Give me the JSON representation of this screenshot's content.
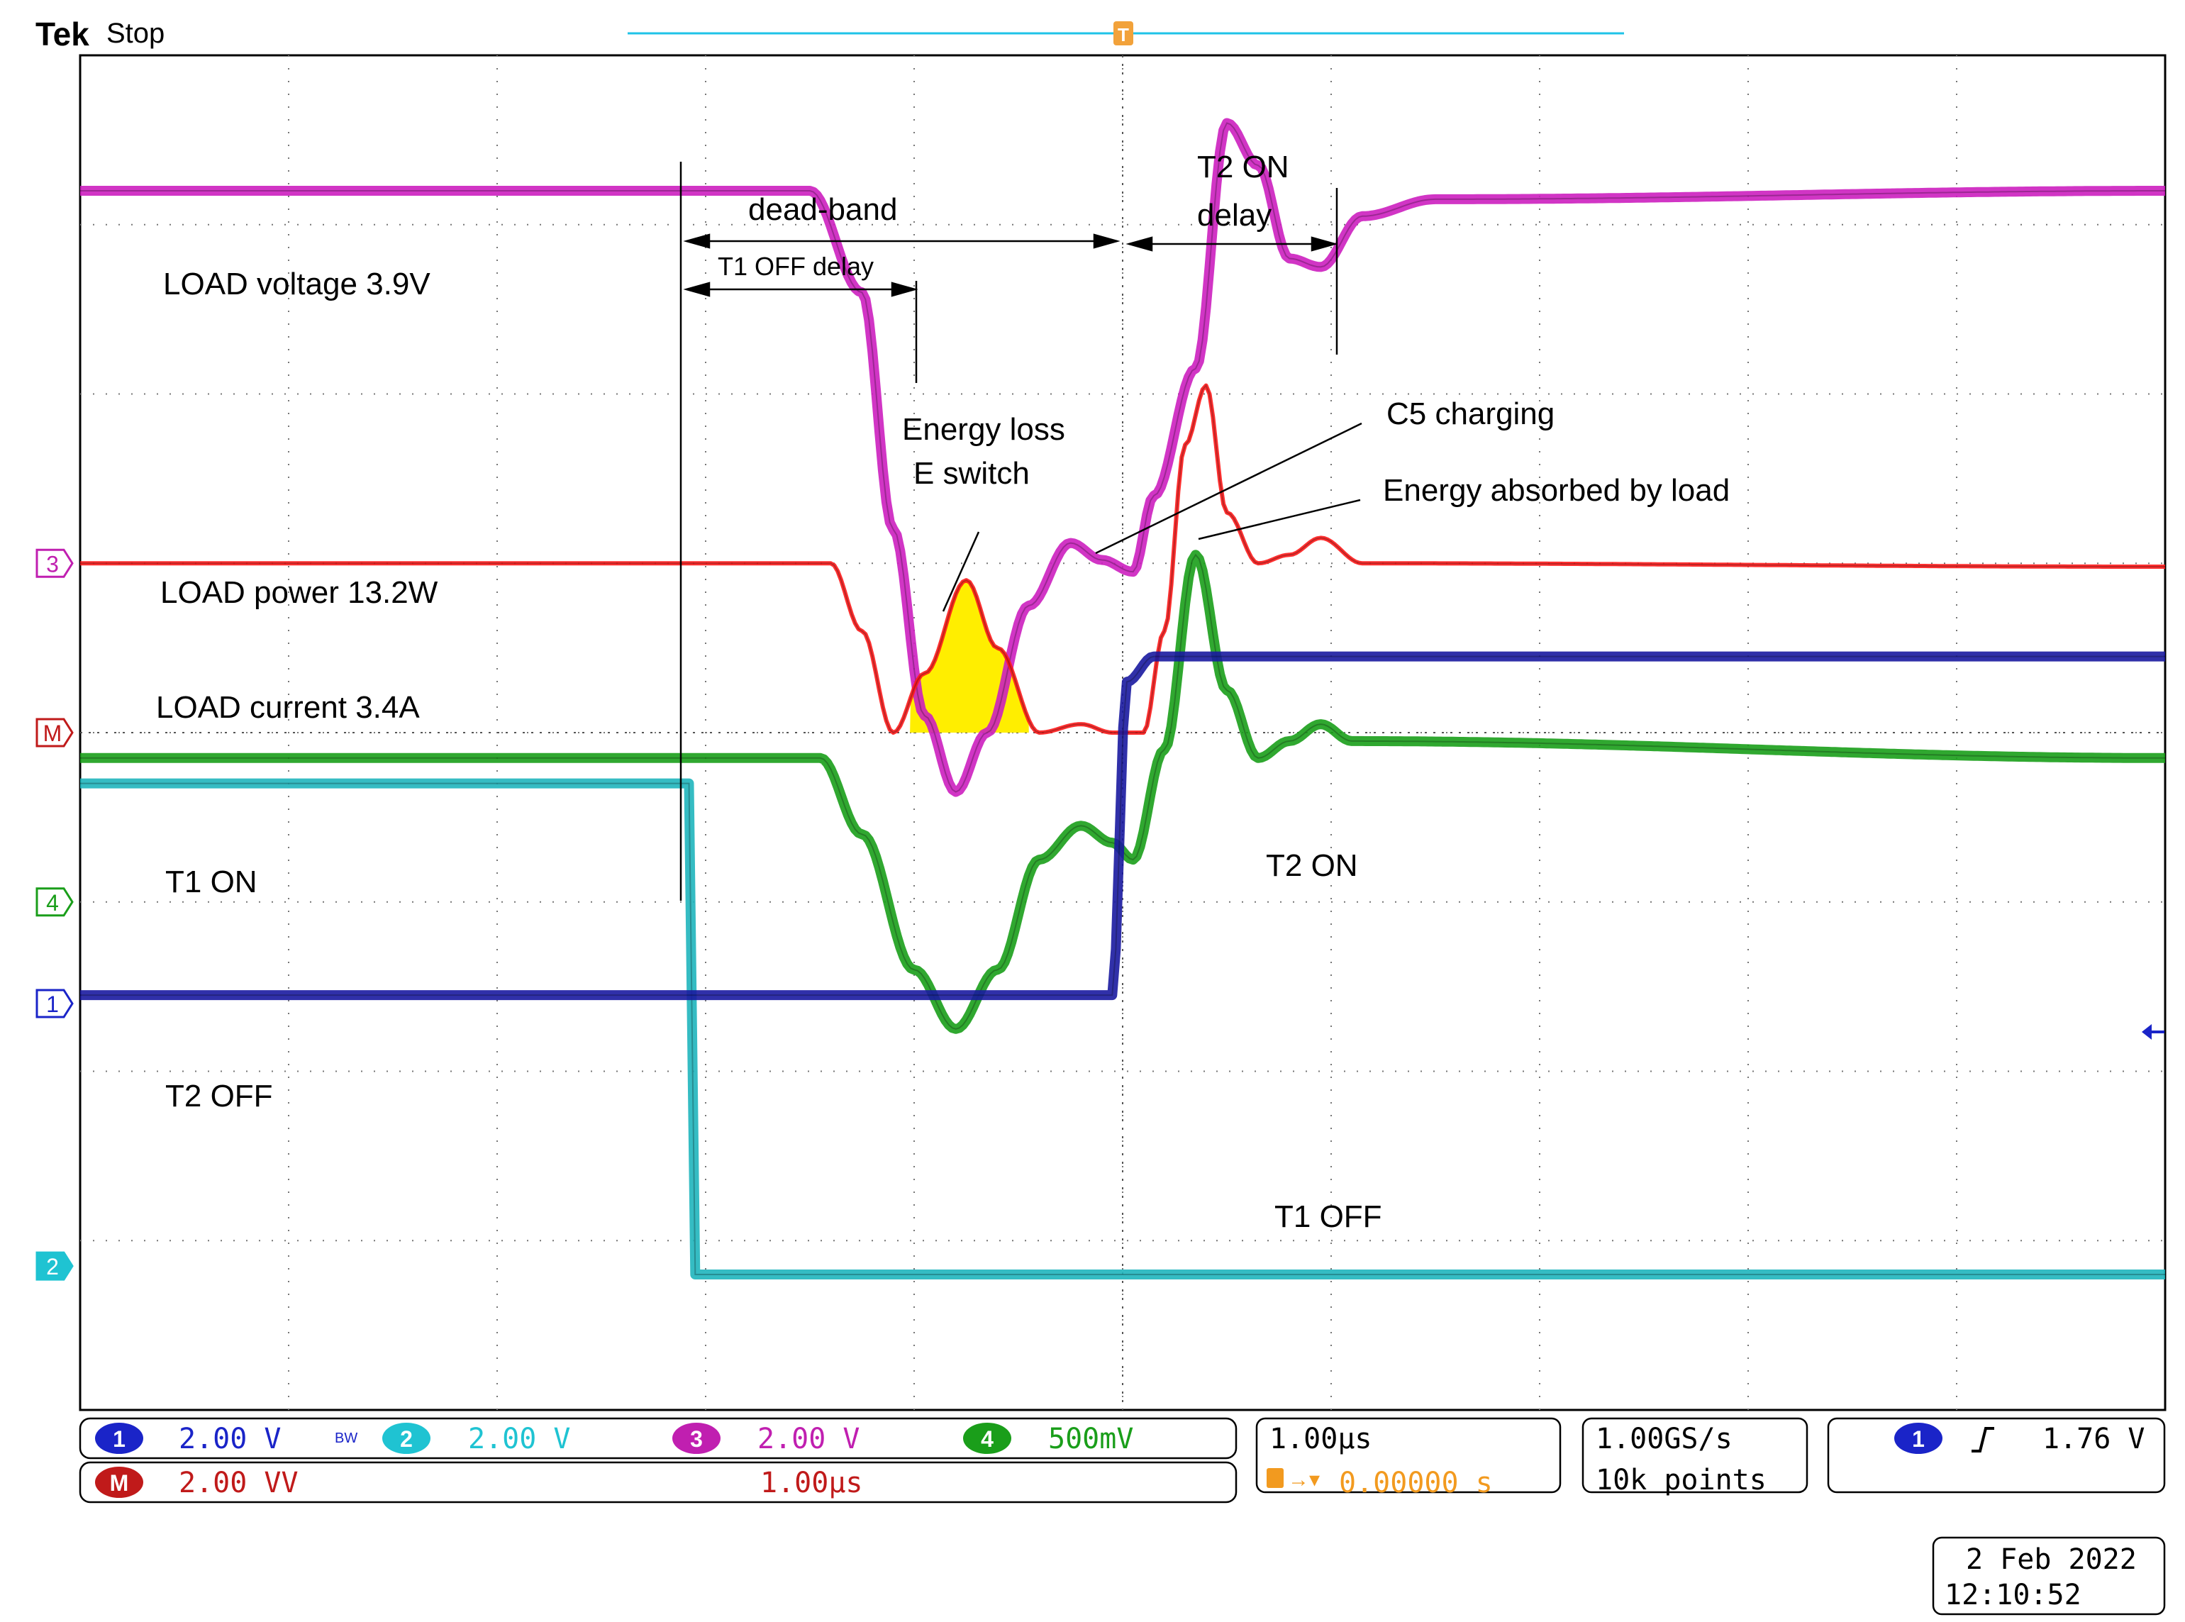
{
  "header": {
    "brand": "Tek",
    "status": "Stop"
  },
  "trigger_marker": "T",
  "trigger_position_marker": "T",
  "chart_data": {
    "type": "line",
    "title": "",
    "xlabel": "",
    "ylabel": "",
    "time_per_div": "1.00µs",
    "grid": true,
    "divisions": {
      "horizontal": 10,
      "vertical": 8
    },
    "trigger_time_div": 5.0,
    "series": [
      {
        "name": "LOAD voltage 3.9V",
        "color": "#cc1fbf",
        "points_div": [
          [
            0,
            7.2
          ],
          [
            3.5,
            7.2
          ],
          [
            3.75,
            6.6
          ],
          [
            3.9,
            5.2
          ],
          [
            4.05,
            4.1
          ],
          [
            4.2,
            3.65
          ],
          [
            4.35,
            4.0
          ],
          [
            4.55,
            4.75
          ],
          [
            4.75,
            5.12
          ],
          [
            4.9,
            5.02
          ],
          [
            5.05,
            4.95
          ],
          [
            5.15,
            5.4
          ],
          [
            5.35,
            6.15
          ],
          [
            5.5,
            7.6
          ],
          [
            5.65,
            7.35
          ],
          [
            5.8,
            6.8
          ],
          [
            5.95,
            6.75
          ],
          [
            6.15,
            7.05
          ],
          [
            6.5,
            7.15
          ],
          [
            10,
            7.2
          ]
        ]
      },
      {
        "name": "LOAD power 13.2W",
        "color": "#ff1a1a",
        "points_div": [
          [
            0,
            5.0
          ],
          [
            3.6,
            5.0
          ],
          [
            3.75,
            4.6
          ],
          [
            3.9,
            4.0
          ],
          [
            4.05,
            4.35
          ],
          [
            4.25,
            4.9
          ],
          [
            4.4,
            4.5
          ],
          [
            4.6,
            4.0
          ],
          [
            4.8,
            4.05
          ],
          [
            4.95,
            4.0
          ],
          [
            5.1,
            4.0
          ],
          [
            5.2,
            4.6
          ],
          [
            5.3,
            5.7
          ],
          [
            5.4,
            6.05
          ],
          [
            5.5,
            5.3
          ],
          [
            5.65,
            5.0
          ],
          [
            5.8,
            5.05
          ],
          [
            5.95,
            5.15
          ],
          [
            6.15,
            5.0
          ],
          [
            10,
            4.98
          ]
        ]
      },
      {
        "name": "LOAD current 3.4A",
        "color": "#1a9e1a",
        "points_div": [
          [
            0,
            3.85
          ],
          [
            3.55,
            3.85
          ],
          [
            3.75,
            3.4
          ],
          [
            4.0,
            2.6
          ],
          [
            4.2,
            2.25
          ],
          [
            4.4,
            2.6
          ],
          [
            4.6,
            3.25
          ],
          [
            4.8,
            3.45
          ],
          [
            4.95,
            3.35
          ],
          [
            5.05,
            3.25
          ],
          [
            5.2,
            3.9
          ],
          [
            5.35,
            5.05
          ],
          [
            5.5,
            4.25
          ],
          [
            5.65,
            3.85
          ],
          [
            5.8,
            3.95
          ],
          [
            5.95,
            4.05
          ],
          [
            6.1,
            3.95
          ],
          [
            10,
            3.85
          ]
        ]
      },
      {
        "name": "T1",
        "color": "#1fb5bc",
        "points_div": [
          [
            0,
            3.7
          ],
          [
            2.92,
            3.7
          ],
          [
            2.95,
            0.8
          ],
          [
            10,
            0.8
          ]
        ]
      },
      {
        "name": "T2",
        "color": "#1a1aa0",
        "points_div": [
          [
            0,
            2.45
          ],
          [
            4.95,
            2.45
          ],
          [
            5.02,
            4.3
          ],
          [
            5.15,
            4.45
          ],
          [
            10,
            4.45
          ]
        ]
      }
    ],
    "annotations": {
      "load_voltage": "LOAD voltage 3.9V",
      "load_power": "LOAD power 13.2W",
      "load_current": "LOAD current 3.4A",
      "t1_on": "T1 ON",
      "t2_off": "T2 OFF",
      "t2_on": "T2 ON",
      "t1_off": "T1 OFF",
      "dead_band": "dead-band",
      "t1_off_delay": "T1 OFF delay",
      "t2_on_delay_line1": "T2 ON",
      "t2_on_delay_line2": "delay",
      "energy_loss_line1": "Energy loss",
      "energy_loss_line2": "E switch",
      "c5_charging": "C5 charging",
      "energy_absorbed": "Energy absorbed by load"
    },
    "channel_markers": [
      "3",
      "M",
      "4",
      "1",
      "2"
    ]
  },
  "channels": {
    "ch1": {
      "num": "1",
      "scale": "2.00 V",
      "color": "#1a24c8"
    },
    "bw": "BW",
    "ch2": {
      "num": "2",
      "scale": "2.00 V",
      "color": "#1fc3d2"
    },
    "ch3": {
      "num": "3",
      "scale": "2.00 V",
      "color": "#c01fb0"
    },
    "ch4": {
      "num": "4",
      "scale": "500mV",
      "color": "#1a9e1a"
    },
    "math": {
      "label": "M",
      "scale": "2.00 VV",
      "time": "1.00µs",
      "color": "#c01a1a"
    }
  },
  "timebase": {
    "scale": "1.00µs",
    "trigger_position": "0.00000 s"
  },
  "acquisition": {
    "rate": "1.00GS/s",
    "points": "10k points"
  },
  "trigger": {
    "channel": "1",
    "level": "1.76 V"
  },
  "datetime": {
    "date": "2 Feb  2022",
    "time": "12:10:52"
  }
}
